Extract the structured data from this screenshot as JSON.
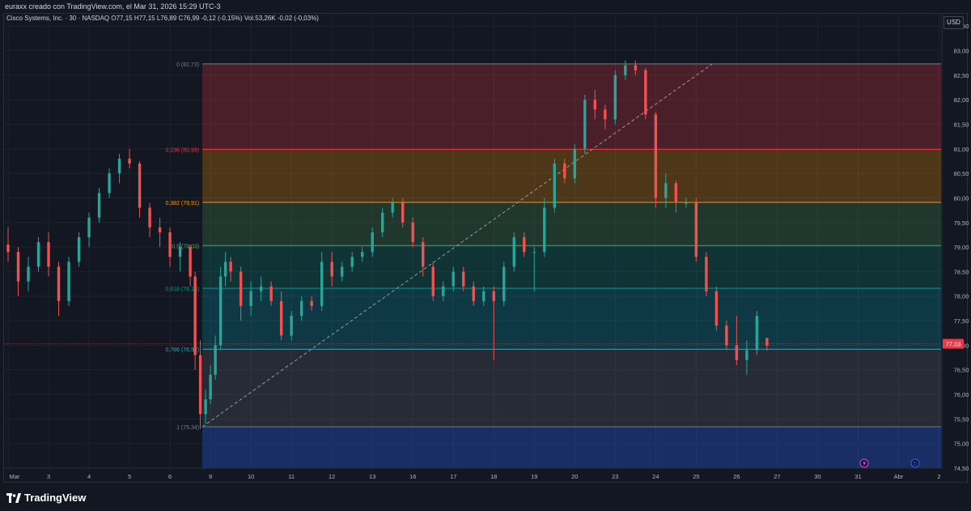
{
  "header": {
    "text": "euraxx creado con TradingView.com, el Mar 31, 2026 15:29 UTC-3"
  },
  "legend": {
    "text": "Cisco Systems, Inc. · 30 · NASDAQ  O77,15  H77,15  L76,89  C76,99  -0,12 (-0,15%)  Vol.53,26K  -0,02 (-0,03%)"
  },
  "currency": "USD",
  "last_price": "77,03",
  "brand": "TradingView",
  "colors": {
    "up": "#26a69a",
    "down": "#ef5350",
    "bg": "#131722",
    "grid": "#1e222d"
  },
  "chart_data": {
    "type": "candlestick",
    "title": "Cisco Systems, Inc. · 30 · NASDAQ",
    "ylim": [
      74.5,
      83.75
    ],
    "y_ticks": [
      "74,50",
      "75,00",
      "75,50",
      "76,00",
      "76,50",
      "77,00",
      "77,50",
      "78,00",
      "78,50",
      "79,00",
      "79,50",
      "80,00",
      "80,50",
      "81,00",
      "81,50",
      "82,00",
      "82,50",
      "83,00",
      "83,50"
    ],
    "x_ticks": [
      "Mar",
      "3",
      "4",
      "5",
      "6",
      "9",
      "10",
      "11",
      "12",
      "13",
      "16",
      "17",
      "18",
      "19",
      "20",
      "23",
      "24",
      "25",
      "26",
      "27",
      "30",
      "31",
      "Abr",
      "2"
    ],
    "fib_levels": [
      {
        "label": "0 (82,73)",
        "value": 82.73,
        "color": "#787b86"
      },
      {
        "label": "0,236 (80,99)",
        "value": 80.99,
        "color": "#f23645"
      },
      {
        "label": "0,382 (79,91)",
        "value": 79.91,
        "color": "#ff9800"
      },
      {
        "label": "0,5 (79,03)",
        "value": 79.03,
        "color": "#4caf50"
      },
      {
        "label": "0,618 (78,16)",
        "value": 78.16,
        "color": "#089981"
      },
      {
        "label": "0,786 (76,92)",
        "value": 76.92,
        "color": "#00bcd4"
      },
      {
        "label": "1 (75,34)",
        "value": 75.34,
        "color": "#787b86"
      }
    ],
    "fib_zones": [
      {
        "from": 82.73,
        "to": 80.99,
        "color": "rgba(242,54,69,0.25)"
      },
      {
        "from": 80.99,
        "to": 79.91,
        "color": "rgba(255,152,0,0.25)"
      },
      {
        "from": 79.91,
        "to": 79.03,
        "color": "rgba(76,175,80,0.22)"
      },
      {
        "from": 79.03,
        "to": 78.16,
        "color": "rgba(8,153,129,0.22)"
      },
      {
        "from": 78.16,
        "to": 76.92,
        "color": "rgba(0,188,212,0.20)"
      },
      {
        "from": 76.92,
        "to": 75.34,
        "color": "rgba(120,123,134,0.20)"
      },
      {
        "from": 75.34,
        "to": 74.5,
        "color": "rgba(41,98,255,0.30)"
      }
    ],
    "anchors": [
      {
        "day": 4.8,
        "value": 75.34
      },
      {
        "day": 17.4,
        "value": 82.73
      }
    ],
    "fib_start_day": 4.8,
    "x_day_min": -0.1,
    "x_day_max": 23.05,
    "series": [
      {
        "day": 0.0,
        "o": 79.05,
        "h": 79.4,
        "l": 78.7,
        "c": 78.9
      },
      {
        "day": 0.25,
        "o": 78.9,
        "h": 79.0,
        "l": 78.0,
        "c": 78.3
      },
      {
        "day": 0.5,
        "o": 78.3,
        "h": 78.8,
        "l": 78.1,
        "c": 78.6
      },
      {
        "day": 0.75,
        "o": 78.6,
        "h": 79.2,
        "l": 78.5,
        "c": 79.1
      },
      {
        "day": 1.0,
        "o": 79.1,
        "h": 79.3,
        "l": 78.4,
        "c": 78.6
      },
      {
        "day": 1.25,
        "o": 78.6,
        "h": 78.7,
        "l": 77.6,
        "c": 77.9
      },
      {
        "day": 1.5,
        "o": 77.9,
        "h": 78.8,
        "l": 77.8,
        "c": 78.7
      },
      {
        "day": 1.75,
        "o": 78.7,
        "h": 79.3,
        "l": 78.6,
        "c": 79.2
      },
      {
        "day": 2.0,
        "o": 79.2,
        "h": 79.7,
        "l": 79.0,
        "c": 79.6
      },
      {
        "day": 2.25,
        "o": 79.6,
        "h": 80.2,
        "l": 79.5,
        "c": 80.1
      },
      {
        "day": 2.5,
        "o": 80.1,
        "h": 80.6,
        "l": 80.0,
        "c": 80.5
      },
      {
        "day": 2.75,
        "o": 80.5,
        "h": 80.9,
        "l": 80.3,
        "c": 80.8
      },
      {
        "day": 3.0,
        "o": 80.8,
        "h": 81.0,
        "l": 80.6,
        "c": 80.7
      },
      {
        "day": 3.25,
        "o": 80.7,
        "h": 80.75,
        "l": 79.6,
        "c": 79.8
      },
      {
        "day": 3.5,
        "o": 79.8,
        "h": 79.9,
        "l": 79.2,
        "c": 79.4
      },
      {
        "day": 3.75,
        "o": 79.4,
        "h": 79.6,
        "l": 79.0,
        "c": 79.3
      },
      {
        "day": 4.0,
        "o": 79.3,
        "h": 79.4,
        "l": 78.6,
        "c": 78.8
      },
      {
        "day": 4.25,
        "o": 78.8,
        "h": 79.1,
        "l": 78.5,
        "c": 79.0
      },
      {
        "day": 4.5,
        "o": 79.0,
        "h": 79.05,
        "l": 78.2,
        "c": 78.4
      },
      {
        "day": 4.62,
        "o": 78.4,
        "h": 78.5,
        "l": 76.5,
        "c": 76.8
      },
      {
        "day": 4.75,
        "o": 76.8,
        "h": 77.1,
        "l": 75.3,
        "c": 75.6
      },
      {
        "day": 4.88,
        "o": 75.6,
        "h": 76.1,
        "l": 75.4,
        "c": 75.9
      },
      {
        "day": 5.0,
        "o": 75.9,
        "h": 76.6,
        "l": 75.8,
        "c": 76.4
      },
      {
        "day": 5.12,
        "o": 76.4,
        "h": 77.2,
        "l": 76.3,
        "c": 77.0
      },
      {
        "day": 5.25,
        "o": 77.0,
        "h": 78.6,
        "l": 76.9,
        "c": 78.4
      },
      {
        "day": 5.37,
        "o": 78.4,
        "h": 78.9,
        "l": 78.2,
        "c": 78.7
      },
      {
        "day": 5.5,
        "o": 78.7,
        "h": 78.8,
        "l": 78.3,
        "c": 78.5
      },
      {
        "day": 5.75,
        "o": 78.5,
        "h": 78.6,
        "l": 77.5,
        "c": 77.8
      },
      {
        "day": 6.0,
        "o": 77.8,
        "h": 78.3,
        "l": 77.6,
        "c": 78.1
      },
      {
        "day": 6.25,
        "o": 78.1,
        "h": 78.4,
        "l": 77.9,
        "c": 78.2
      },
      {
        "day": 6.5,
        "o": 78.2,
        "h": 78.3,
        "l": 77.8,
        "c": 77.9
      },
      {
        "day": 6.75,
        "o": 77.9,
        "h": 78.1,
        "l": 77.1,
        "c": 77.2
      },
      {
        "day": 7.0,
        "o": 77.2,
        "h": 77.7,
        "l": 77.1,
        "c": 77.6
      },
      {
        "day": 7.25,
        "o": 77.6,
        "h": 78.0,
        "l": 77.5,
        "c": 77.9
      },
      {
        "day": 7.5,
        "o": 77.9,
        "h": 78.0,
        "l": 77.7,
        "c": 77.8
      },
      {
        "day": 7.75,
        "o": 77.8,
        "h": 78.9,
        "l": 77.7,
        "c": 78.7
      },
      {
        "day": 8.0,
        "o": 78.7,
        "h": 78.9,
        "l": 78.2,
        "c": 78.4
      },
      {
        "day": 8.25,
        "o": 78.4,
        "h": 78.7,
        "l": 78.3,
        "c": 78.6
      },
      {
        "day": 8.5,
        "o": 78.6,
        "h": 78.9,
        "l": 78.5,
        "c": 78.8
      },
      {
        "day": 8.75,
        "o": 78.8,
        "h": 79.0,
        "l": 78.7,
        "c": 78.9
      },
      {
        "day": 9.0,
        "o": 78.9,
        "h": 79.4,
        "l": 78.8,
        "c": 79.3
      },
      {
        "day": 9.25,
        "o": 79.3,
        "h": 79.8,
        "l": 79.2,
        "c": 79.7
      },
      {
        "day": 9.5,
        "o": 79.7,
        "h": 80.0,
        "l": 79.6,
        "c": 79.9
      },
      {
        "day": 9.75,
        "o": 79.9,
        "h": 80.0,
        "l": 79.4,
        "c": 79.5
      },
      {
        "day": 10.0,
        "o": 79.5,
        "h": 79.6,
        "l": 79.0,
        "c": 79.1
      },
      {
        "day": 10.25,
        "o": 79.1,
        "h": 79.2,
        "l": 78.4,
        "c": 78.6
      },
      {
        "day": 10.5,
        "o": 78.6,
        "h": 78.7,
        "l": 77.9,
        "c": 78.0
      },
      {
        "day": 10.75,
        "o": 78.0,
        "h": 78.3,
        "l": 77.9,
        "c": 78.2
      },
      {
        "day": 11.0,
        "o": 78.2,
        "h": 78.6,
        "l": 78.1,
        "c": 78.5
      },
      {
        "day": 11.25,
        "o": 78.5,
        "h": 78.6,
        "l": 78.1,
        "c": 78.2
      },
      {
        "day": 11.5,
        "o": 78.2,
        "h": 78.3,
        "l": 77.8,
        "c": 77.9
      },
      {
        "day": 11.75,
        "o": 77.9,
        "h": 78.2,
        "l": 77.8,
        "c": 78.1
      },
      {
        "day": 12.0,
        "o": 78.1,
        "h": 78.2,
        "l": 76.7,
        "c": 77.9
      },
      {
        "day": 12.25,
        "o": 77.9,
        "h": 78.7,
        "l": 77.8,
        "c": 78.6
      },
      {
        "day": 12.5,
        "o": 78.6,
        "h": 79.3,
        "l": 78.5,
        "c": 79.2
      },
      {
        "day": 12.75,
        "o": 79.2,
        "h": 79.3,
        "l": 78.8,
        "c": 78.9
      },
      {
        "day": 13.0,
        "o": 78.9,
        "h": 79.0,
        "l": 78.1,
        "c": 78.9
      },
      {
        "day": 13.25,
        "o": 78.9,
        "h": 80.0,
        "l": 78.8,
        "c": 79.8
      },
      {
        "day": 13.5,
        "o": 79.8,
        "h": 80.8,
        "l": 79.7,
        "c": 80.7
      },
      {
        "day": 13.75,
        "o": 80.7,
        "h": 80.8,
        "l": 80.3,
        "c": 80.4
      },
      {
        "day": 14.0,
        "o": 80.4,
        "h": 81.1,
        "l": 80.3,
        "c": 81.0
      },
      {
        "day": 14.25,
        "o": 81.0,
        "h": 82.1,
        "l": 80.9,
        "c": 82.0
      },
      {
        "day": 14.5,
        "o": 82.0,
        "h": 82.2,
        "l": 81.6,
        "c": 81.8
      },
      {
        "day": 14.75,
        "o": 81.8,
        "h": 81.9,
        "l": 81.4,
        "c": 81.6
      },
      {
        "day": 15.0,
        "o": 81.6,
        "h": 82.6,
        "l": 81.5,
        "c": 82.5
      },
      {
        "day": 15.25,
        "o": 82.5,
        "h": 82.8,
        "l": 82.4,
        "c": 82.7
      },
      {
        "day": 15.5,
        "o": 82.7,
        "h": 82.8,
        "l": 82.5,
        "c": 82.6
      },
      {
        "day": 15.75,
        "o": 82.6,
        "h": 82.65,
        "l": 81.6,
        "c": 81.7
      },
      {
        "day": 16.0,
        "o": 81.7,
        "h": 81.75,
        "l": 79.8,
        "c": 80.0
      },
      {
        "day": 16.25,
        "o": 80.0,
        "h": 80.5,
        "l": 79.8,
        "c": 80.3
      },
      {
        "day": 16.5,
        "o": 80.3,
        "h": 80.35,
        "l": 79.7,
        "c": 79.9
      },
      {
        "day": 16.75,
        "o": 79.9,
        "h": 80.0,
        "l": 79.8,
        "c": 79.9
      },
      {
        "day": 17.0,
        "o": 79.9,
        "h": 80.0,
        "l": 78.7,
        "c": 78.8
      },
      {
        "day": 17.25,
        "o": 78.8,
        "h": 78.9,
        "l": 78.0,
        "c": 78.1
      },
      {
        "day": 17.5,
        "o": 78.1,
        "h": 78.2,
        "l": 77.3,
        "c": 77.4
      },
      {
        "day": 17.75,
        "o": 77.4,
        "h": 77.5,
        "l": 76.9,
        "c": 77.0
      },
      {
        "day": 18.0,
        "o": 77.0,
        "h": 77.6,
        "l": 76.6,
        "c": 76.7
      },
      {
        "day": 18.25,
        "o": 76.7,
        "h": 77.1,
        "l": 76.4,
        "c": 76.9
      },
      {
        "day": 18.5,
        "o": 76.9,
        "h": 77.7,
        "l": 76.8,
        "c": 77.6
      },
      {
        "day": 18.75,
        "o": 77.15,
        "h": 77.15,
        "l": 76.89,
        "c": 76.99
      }
    ]
  }
}
